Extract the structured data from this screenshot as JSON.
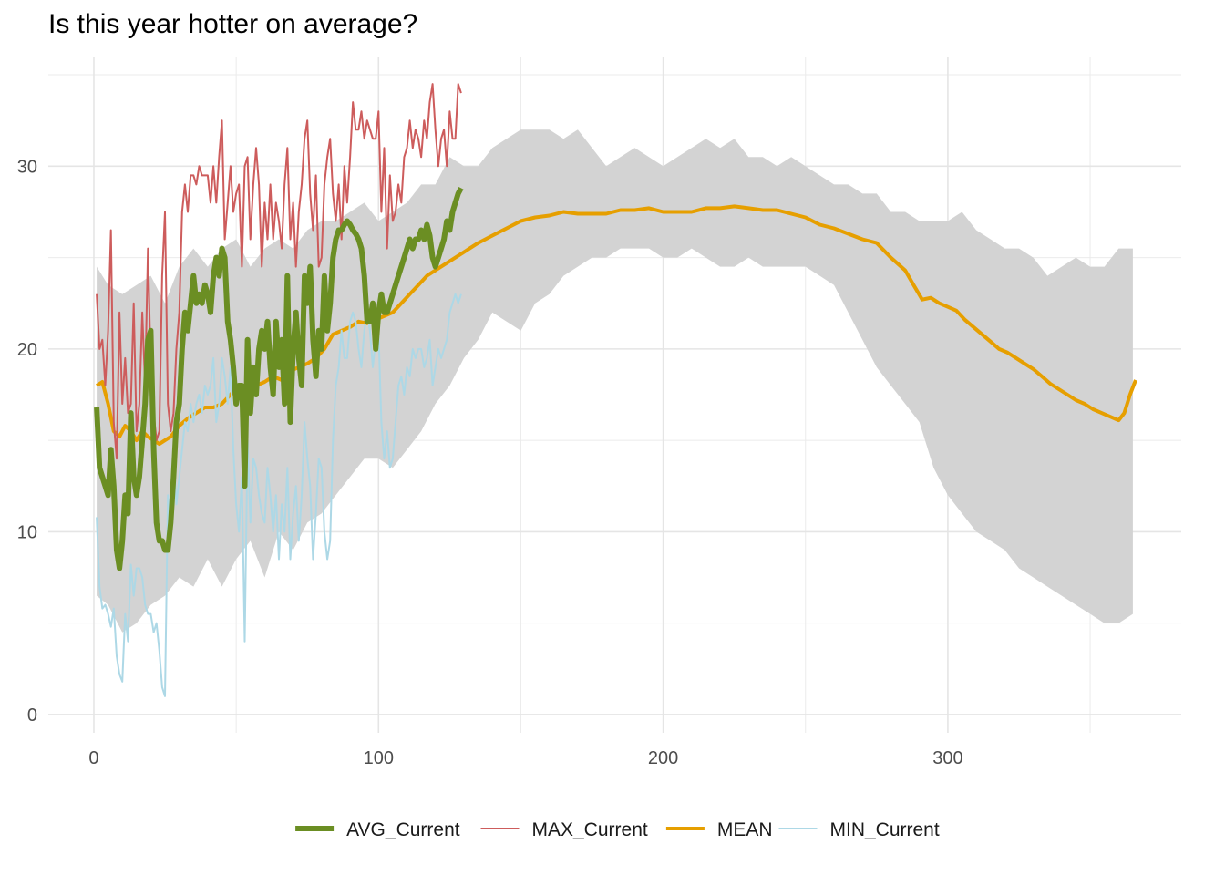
{
  "chart_data": {
    "type": "line",
    "title": "Is this year hotter on average?",
    "xlabel": "",
    "ylabel": "",
    "xlim": [
      -16,
      382
    ],
    "ylim": [
      -1,
      36
    ],
    "x_ticks": [
      0,
      100,
      200,
      300
    ],
    "y_ticks": [
      0,
      10,
      20,
      30
    ],
    "grid": true,
    "legend_position": "bottom",
    "band": {
      "name": "",
      "color": "#d3d3d3",
      "x": [
        1,
        5,
        10,
        15,
        20,
        25,
        30,
        35,
        40,
        45,
        50,
        55,
        60,
        65,
        70,
        75,
        80,
        85,
        90,
        95,
        100,
        105,
        110,
        115,
        120,
        125,
        130,
        135,
        140,
        145,
        150,
        155,
        160,
        165,
        170,
        175,
        180,
        185,
        190,
        195,
        200,
        205,
        210,
        215,
        220,
        225,
        230,
        235,
        240,
        245,
        250,
        255,
        260,
        265,
        270,
        275,
        280,
        285,
        290,
        295,
        300,
        305,
        310,
        315,
        320,
        325,
        330,
        335,
        340,
        345,
        350,
        355,
        360,
        365
      ],
      "upper": [
        24.5,
        23.5,
        23,
        23.5,
        24,
        22.5,
        24.5,
        25.5,
        24.5,
        25.5,
        26,
        24.5,
        25.5,
        26,
        25.5,
        26.5,
        27,
        27,
        27.5,
        28,
        27,
        27.5,
        28,
        29,
        29,
        30.5,
        30,
        30,
        31,
        31.5,
        32,
        32,
        32,
        31.5,
        32,
        31,
        30,
        30.5,
        31,
        30.5,
        30,
        30.5,
        31,
        31.5,
        31,
        31.5,
        30.5,
        30.5,
        30,
        30.5,
        30,
        29.5,
        29,
        29,
        28.5,
        28.5,
        27.5,
        27.5,
        27,
        27,
        27,
        27.5,
        26.5,
        26,
        25.5,
        25.5,
        25,
        24,
        24.5,
        25,
        24.5,
        24.5,
        25.5,
        25.5
      ],
      "lower": [
        6.5,
        6,
        4.5,
        5,
        6,
        6.5,
        7.5,
        7,
        8.5,
        7,
        8.5,
        9.5,
        7.5,
        10,
        9,
        10.5,
        11,
        12,
        13,
        14,
        14,
        13.5,
        14.5,
        15.5,
        17,
        18,
        19.5,
        20.5,
        22,
        21.5,
        21,
        22.5,
        23,
        24,
        24.5,
        25,
        25,
        25.5,
        25.5,
        25.5,
        25,
        25,
        25.5,
        25,
        24.5,
        24.5,
        25,
        24.5,
        24.5,
        24.5,
        24.5,
        24,
        23.5,
        22,
        20.5,
        19,
        18,
        17,
        16,
        13.5,
        12,
        11,
        10,
        9.5,
        9,
        8,
        7.5,
        7,
        6.5,
        6,
        5.5,
        5,
        5,
        5.5
      ]
    },
    "series": [
      {
        "name": "MEAN",
        "color": "#e69f00",
        "x": [
          1,
          3,
          5,
          7,
          9,
          11,
          13,
          15,
          17,
          19,
          21,
          23,
          25,
          27,
          30,
          33,
          36,
          39,
          42,
          45,
          48,
          51,
          54,
          57,
          60,
          63,
          66,
          69,
          72,
          75,
          78,
          81,
          84,
          87,
          90,
          93,
          96,
          99,
          102,
          105,
          108,
          111,
          114,
          117,
          120,
          123,
          126,
          129,
          132,
          135,
          140,
          145,
          150,
          155,
          160,
          165,
          170,
          175,
          180,
          185,
          190,
          195,
          200,
          205,
          210,
          215,
          220,
          225,
          230,
          235,
          240,
          245,
          250,
          255,
          260,
          265,
          270,
          275,
          280,
          285,
          288,
          291,
          294,
          297,
          300,
          303,
          306,
          309,
          312,
          315,
          318,
          321,
          324,
          327,
          330,
          333,
          336,
          339,
          342,
          345,
          348,
          351,
          354,
          357,
          360,
          362,
          364,
          366
        ],
        "y": [
          18,
          18.2,
          17,
          15.5,
          15.2,
          15.8,
          15.5,
          15,
          15.5,
          15.2,
          15,
          14.8,
          15,
          15.2,
          15.8,
          16.2,
          16.5,
          16.8,
          16.8,
          17,
          17.5,
          18,
          17.8,
          18,
          18.2,
          18.5,
          18.3,
          18.8,
          19,
          19.2,
          19.5,
          20,
          20.8,
          21,
          21.2,
          21.5,
          21.4,
          21.6,
          21.8,
          22,
          22.5,
          23,
          23.5,
          24,
          24.3,
          24.6,
          24.9,
          25.2,
          25.5,
          25.8,
          26.2,
          26.6,
          27,
          27.2,
          27.3,
          27.5,
          27.4,
          27.4,
          27.4,
          27.6,
          27.6,
          27.7,
          27.5,
          27.5,
          27.5,
          27.7,
          27.7,
          27.8,
          27.7,
          27.6,
          27.6,
          27.4,
          27.2,
          26.8,
          26.6,
          26.3,
          26,
          25.8,
          25,
          24.3,
          23.5,
          22.7,
          22.8,
          22.5,
          22.3,
          22.1,
          21.6,
          21.2,
          20.8,
          20.4,
          20,
          19.8,
          19.5,
          19.2,
          18.9,
          18.5,
          18.1,
          17.8,
          17.5,
          17.2,
          17,
          16.7,
          16.5,
          16.3,
          16.1,
          16.5,
          17.5,
          18.3
        ]
      },
      {
        "name": "MAX_Current",
        "color": "#cd5c5c",
        "x": [
          1,
          2,
          3,
          4,
          5,
          6,
          7,
          8,
          9,
          10,
          11,
          12,
          13,
          14,
          15,
          16,
          17,
          18,
          19,
          20,
          21,
          22,
          23,
          24,
          25,
          26,
          27,
          28,
          29,
          30,
          31,
          32,
          33,
          34,
          35,
          36,
          37,
          38,
          39,
          40,
          41,
          42,
          43,
          44,
          45,
          46,
          47,
          48,
          49,
          50,
          51,
          52,
          53,
          54,
          55,
          56,
          57,
          58,
          59,
          60,
          61,
          62,
          63,
          64,
          65,
          66,
          67,
          68,
          69,
          70,
          71,
          72,
          73,
          74,
          75,
          76,
          77,
          78,
          79,
          80,
          81,
          82,
          83,
          84,
          85,
          86,
          87,
          88,
          89,
          90,
          91,
          92,
          93,
          94,
          95,
          96,
          97,
          98,
          99,
          100,
          101,
          102,
          103,
          104,
          105,
          106,
          107,
          108,
          109,
          110,
          111,
          112,
          113,
          114,
          115,
          116,
          117,
          118,
          119,
          120,
          121,
          122,
          123,
          124,
          125,
          126,
          127,
          128,
          129
        ],
        "y": [
          23,
          20,
          20.5,
          18,
          21,
          26.5,
          16,
          14,
          22,
          17,
          19.5,
          16.5,
          17,
          22.5,
          15.5,
          17,
          22,
          18,
          25.5,
          19,
          16.5,
          15,
          15.5,
          24,
          27.5,
          17,
          15.5,
          16.5,
          20,
          22,
          27.5,
          29,
          27.5,
          29.5,
          29.5,
          29,
          30,
          29.5,
          29.5,
          29.5,
          28,
          30,
          28,
          30.5,
          32.5,
          26,
          28,
          30,
          27.5,
          28.5,
          29,
          24.5,
          30,
          30.5,
          26,
          29,
          31,
          29,
          24.5,
          28,
          26,
          29,
          26,
          28,
          27,
          25.5,
          29,
          31,
          26,
          28,
          24.5,
          27.5,
          29,
          31.5,
          32.5,
          28.5,
          26.5,
          29.5,
          24.5,
          25,
          29,
          30.5,
          31.5,
          28.5,
          27,
          29,
          26,
          30,
          28,
          30.5,
          33.5,
          32,
          32,
          33,
          31.5,
          32.5,
          32,
          31.5,
          31.5,
          33,
          27.5,
          31,
          25.5,
          29.5,
          27,
          27.5,
          29,
          28,
          30.5,
          31,
          32.5,
          31,
          32,
          31.5,
          30.5,
          32.5,
          31.5,
          33.5,
          34.5,
          32,
          30,
          31.5,
          32,
          30,
          33,
          31.5,
          31.5,
          34.5,
          34
        ]
      },
      {
        "name": "MIN_Current",
        "color": "#add8e6",
        "x": [
          1,
          2,
          3,
          4,
          5,
          6,
          7,
          8,
          9,
          10,
          11,
          12,
          13,
          14,
          15,
          16,
          17,
          18,
          19,
          20,
          21,
          22,
          23,
          24,
          25,
          26,
          27,
          28,
          29,
          30,
          31,
          32,
          33,
          34,
          35,
          36,
          37,
          38,
          39,
          40,
          41,
          42,
          43,
          44,
          45,
          46,
          47,
          48,
          49,
          50,
          51,
          52,
          53,
          54,
          55,
          56,
          57,
          58,
          59,
          60,
          61,
          62,
          63,
          64,
          65,
          66,
          67,
          68,
          69,
          70,
          71,
          72,
          73,
          74,
          75,
          76,
          77,
          78,
          79,
          80,
          81,
          82,
          83,
          84,
          85,
          86,
          87,
          88,
          89,
          90,
          91,
          92,
          93,
          94,
          95,
          96,
          97,
          98,
          99,
          100,
          101,
          102,
          103,
          104,
          105,
          106,
          107,
          108,
          109,
          110,
          111,
          112,
          113,
          114,
          115,
          116,
          117,
          118,
          119,
          120,
          121,
          122,
          123,
          124,
          125,
          126,
          127,
          128,
          129
        ],
        "y": [
          10.8,
          7,
          5.8,
          6,
          5.5,
          4.8,
          5.8,
          3.2,
          2.2,
          1.8,
          5.5,
          4,
          8.2,
          6.5,
          8,
          8,
          7.5,
          6,
          5.5,
          5.5,
          4.5,
          5,
          3.5,
          1.5,
          1,
          12,
          10,
          14.5,
          11.5,
          13,
          14.5,
          16,
          15.5,
          17,
          16,
          17,
          17.5,
          16.5,
          18,
          17.5,
          18,
          19.5,
          16,
          17,
          19.5,
          18.5,
          17,
          19,
          14.5,
          11.5,
          10,
          13,
          4,
          15,
          10.5,
          14,
          13.5,
          12,
          11,
          10.5,
          13.5,
          12,
          10,
          12,
          8.5,
          11.5,
          10,
          13.5,
          8.5,
          11,
          12.5,
          9.5,
          12,
          16,
          14,
          12.5,
          8.5,
          11,
          14,
          13.5,
          10,
          8.5,
          9.5,
          15,
          18,
          19,
          21,
          19.5,
          19.5,
          21.5,
          22,
          21.5,
          20,
          19,
          21,
          22,
          21,
          19,
          20.5,
          21,
          16,
          14,
          15.5,
          13.5,
          14,
          16,
          18,
          18.5,
          17.5,
          19,
          18.5,
          20,
          19.5,
          20,
          20,
          19,
          19.5,
          20.5,
          18,
          19,
          20,
          19.5,
          20,
          20.5,
          22,
          22.5,
          23,
          22.5,
          23
        ]
      },
      {
        "name": "AVG_Current",
        "color": "#6b8e23",
        "x": [
          1,
          2,
          3,
          4,
          5,
          6,
          7,
          8,
          9,
          10,
          11,
          12,
          13,
          14,
          15,
          16,
          17,
          18,
          19,
          20,
          21,
          22,
          23,
          24,
          25,
          26,
          27,
          28,
          29,
          30,
          31,
          32,
          33,
          34,
          35,
          36,
          37,
          38,
          39,
          40,
          41,
          42,
          43,
          44,
          45,
          46,
          47,
          48,
          49,
          50,
          51,
          52,
          53,
          54,
          55,
          56,
          57,
          58,
          59,
          60,
          61,
          62,
          63,
          64,
          65,
          66,
          67,
          68,
          69,
          70,
          71,
          72,
          73,
          74,
          75,
          76,
          77,
          78,
          79,
          80,
          81,
          82,
          83,
          84,
          85,
          86,
          87,
          88,
          89,
          90,
          91,
          92,
          93,
          94,
          95,
          96,
          97,
          98,
          99,
          100,
          101,
          102,
          103,
          104,
          105,
          106,
          107,
          108,
          109,
          110,
          111,
          112,
          113,
          114,
          115,
          116,
          117,
          118,
          119,
          120,
          121,
          122,
          123,
          124,
          125,
          126,
          127,
          128,
          129
        ],
        "y": [
          16.8,
          13.5,
          13,
          12.5,
          12,
          14.5,
          12.5,
          9,
          8,
          9.5,
          12,
          11,
          16.5,
          13,
          12,
          13,
          15,
          17,
          20.5,
          21,
          14.5,
          10.5,
          9.5,
          9.5,
          9,
          9,
          10.5,
          13,
          16,
          17,
          20,
          22,
          21,
          22.5,
          24,
          22.5,
          23,
          22.5,
          23.5,
          23,
          22,
          24,
          25,
          24,
          25.5,
          25,
          21.5,
          20.5,
          19,
          17,
          18,
          18,
          12.5,
          20.5,
          16.5,
          19,
          17.5,
          20,
          21,
          20,
          21.5,
          19,
          17.5,
          21.5,
          19,
          20.5,
          17,
          24,
          16,
          20,
          22,
          19.5,
          18,
          24,
          22.5,
          24.5,
          20.5,
          18.5,
          21,
          20,
          24,
          21,
          22.5,
          25,
          26,
          26.5,
          26.5,
          26.8,
          27,
          26.8,
          26.5,
          26.3,
          26,
          25.5,
          24,
          21.5,
          21.5,
          22.5,
          20,
          22,
          23,
          22,
          22,
          22.5,
          23,
          23.5,
          24,
          24.5,
          25,
          25.5,
          26,
          25.5,
          26,
          26,
          26.5,
          26,
          26.8,
          26.2,
          25,
          24.5,
          25,
          25.5,
          26,
          27,
          26.5,
          27.5,
          28,
          28.5,
          28.8
        ]
      }
    ],
    "legend": [
      {
        "label": "AVG_Current",
        "color": "#6b8e23",
        "width": 6
      },
      {
        "label": "MAX_Current",
        "color": "#cd5c5c",
        "width": 2
      },
      {
        "label": "MEAN",
        "color": "#e69f00",
        "width": 4
      },
      {
        "label": "MIN_Current",
        "color": "#add8e6",
        "width": 2
      }
    ]
  }
}
